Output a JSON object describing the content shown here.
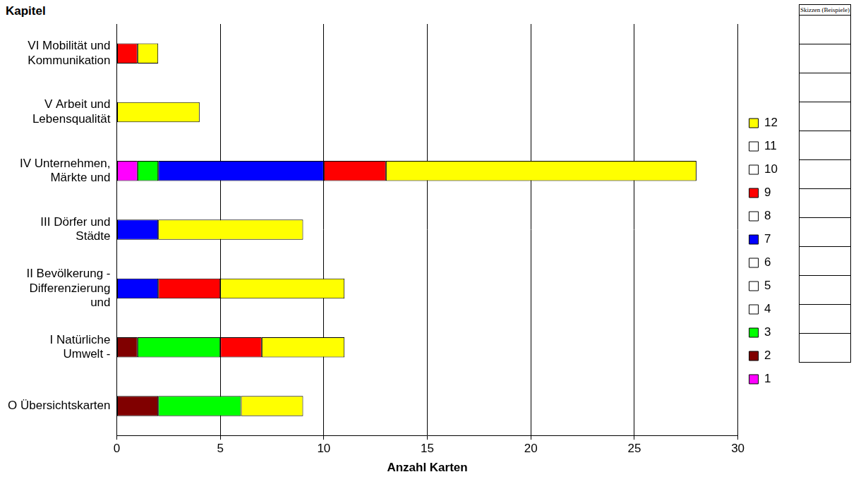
{
  "chart_data": {
    "type": "bar",
    "orientation": "horizontal",
    "stacked": true,
    "ylabel": "Kapitel",
    "xlabel": "Anzahl Karten",
    "categories": [
      "VI Mobilität und Kommunikation",
      "V Arbeit und Lebensqualität",
      "IV Unternehmen, Märkte und",
      "III Dörfer und Städte",
      "II Bevölkerung - Differenzierung und",
      "I Natürliche Umwelt -",
      "O Übersichtskarten"
    ],
    "series": [
      {
        "name": "1",
        "color": "#ff00ff",
        "values": [
          0,
          0,
          1,
          0,
          0,
          0,
          0
        ]
      },
      {
        "name": "2",
        "color": "#800000",
        "values": [
          0,
          0,
          0,
          0,
          0,
          1,
          2
        ]
      },
      {
        "name": "3",
        "color": "#00ff00",
        "values": [
          0,
          0,
          1,
          0,
          0,
          4,
          4
        ]
      },
      {
        "name": "4",
        "color": "#ffffff",
        "values": [
          0,
          0,
          0,
          0,
          0,
          0,
          0
        ]
      },
      {
        "name": "5",
        "color": "#ffffff",
        "values": [
          0,
          0,
          0,
          0,
          0,
          0,
          0
        ]
      },
      {
        "name": "6",
        "color": "#ffffff",
        "values": [
          0,
          0,
          0,
          0,
          0,
          0,
          0
        ]
      },
      {
        "name": "7",
        "color": "#0000ff",
        "values": [
          0,
          0,
          8,
          2,
          2,
          0,
          0
        ]
      },
      {
        "name": "8",
        "color": "#ffffff",
        "values": [
          0,
          0,
          0,
          0,
          0,
          0,
          0
        ]
      },
      {
        "name": "9",
        "color": "#ff0000",
        "values": [
          1,
          0,
          3,
          0,
          3,
          2,
          0
        ]
      },
      {
        "name": "10",
        "color": "#ffffff",
        "values": [
          0,
          0,
          0,
          0,
          0,
          0,
          0
        ]
      },
      {
        "name": "11",
        "color": "#ffffff",
        "values": [
          0,
          0,
          0,
          0,
          0,
          0,
          0
        ]
      },
      {
        "name": "12",
        "color": "#ffff00",
        "values": [
          1,
          4,
          15,
          7,
          6,
          4,
          3
        ]
      }
    ],
    "xlim": [
      0,
      30
    ],
    "xticks": [
      0,
      5,
      10,
      15,
      20,
      25,
      30
    ],
    "grid": true,
    "legend": "right",
    "annotations": [
      {
        "text": "Skizzen (Beispiele)"
      }
    ]
  }
}
